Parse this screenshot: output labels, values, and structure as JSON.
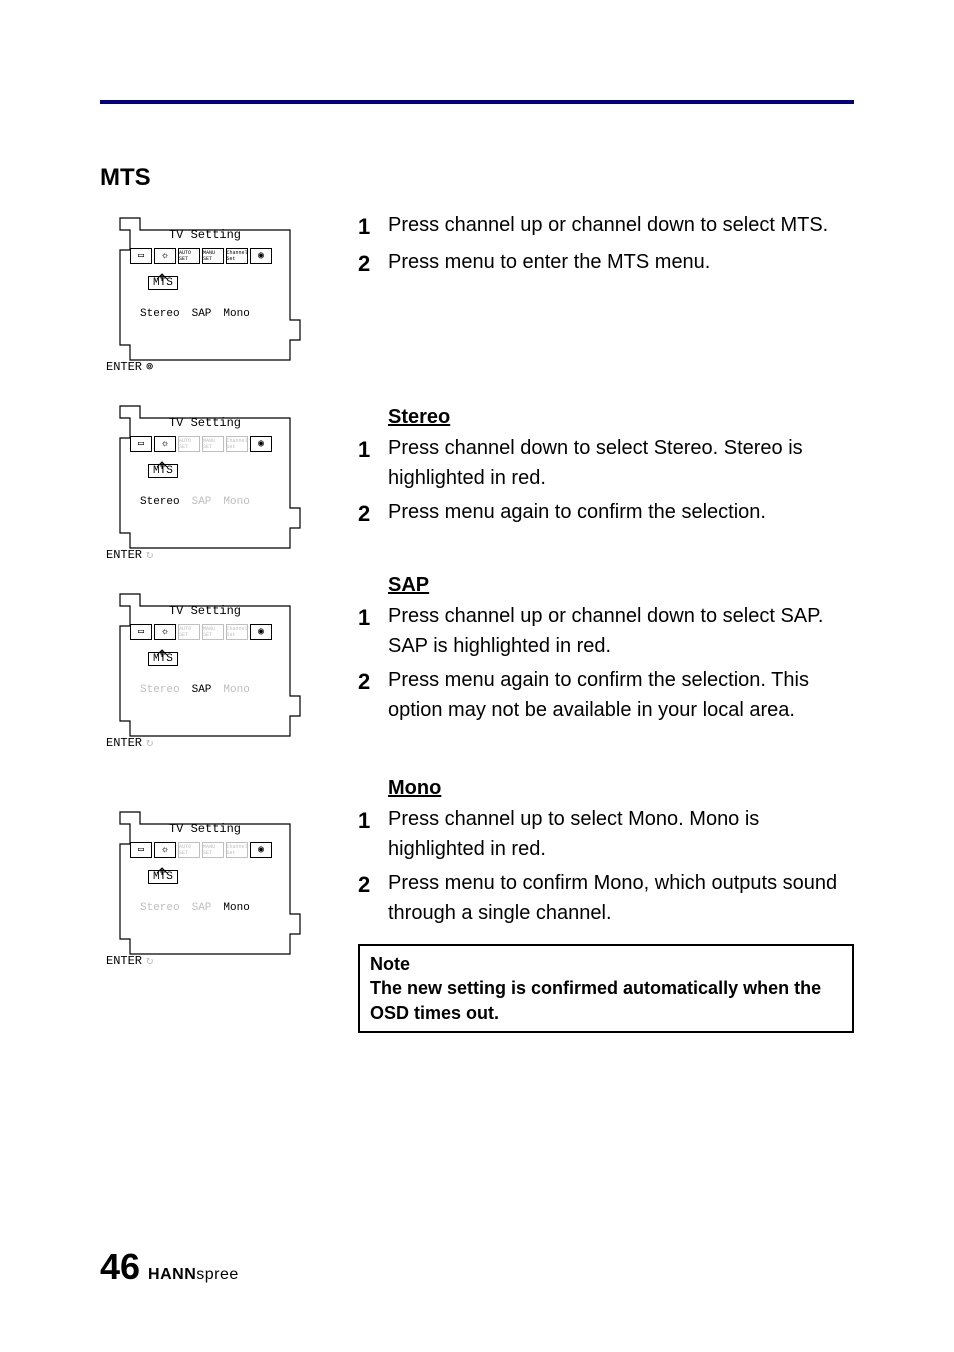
{
  "divider_color": "#000080",
  "section_title": "MTS",
  "osd": {
    "title": "TV  Setting",
    "mts_label": "MTS",
    "enter_label": "ENTER",
    "icons_normal": [
      {
        "dim": false,
        "glyph": "▭"
      },
      {
        "dim": false,
        "glyph": "☼"
      },
      {
        "dim": false,
        "glyph": "AUTO SET"
      },
      {
        "dim": false,
        "glyph": "MANU SET"
      },
      {
        "dim": false,
        "glyph": "Channel Set"
      },
      {
        "dim": false,
        "glyph": "◉"
      }
    ],
    "icons_dim": [
      {
        "dim": false,
        "glyph": "▭"
      },
      {
        "dim": false,
        "glyph": "☼"
      },
      {
        "dim": true,
        "glyph": "AUTO SET"
      },
      {
        "dim": true,
        "glyph": "MANU SET"
      },
      {
        "dim": true,
        "glyph": "Channel Set"
      },
      {
        "dim": false,
        "glyph": "◉"
      }
    ],
    "options": [
      "Stereo",
      "SAP",
      "Mono"
    ],
    "screens": [
      {
        "highlight": [
          0,
          1,
          2
        ],
        "dim_icons": false,
        "enter_sym": "⊚"
      },
      {
        "highlight": [
          0
        ],
        "dim_icons": true,
        "enter_sym": "↻"
      },
      {
        "highlight": [
          1
        ],
        "dim_icons": true,
        "enter_sym": "↻"
      },
      {
        "highlight": [
          2
        ],
        "dim_icons": true,
        "enter_sym": "↻"
      }
    ]
  },
  "blocks": [
    {
      "heading": null,
      "steps": [
        {
          "n": "1",
          "t": "Press channel up or channel down to select MTS."
        },
        {
          "n": "2",
          "t": "Press menu to enter the MTS menu."
        }
      ]
    },
    {
      "heading": "Stereo",
      "steps": [
        {
          "n": "1",
          "t": "Press channel down to select Stereo. Stereo is highlighted in red."
        },
        {
          "n": "2",
          "t": "Press menu again to confirm the selection."
        }
      ]
    },
    {
      "heading": "SAP",
      "steps": [
        {
          "n": "1",
          "t": "Press channel up or channel down to select SAP. SAP is highlighted in red."
        },
        {
          "n": "2",
          "t": "Press menu again to confirm the selection. This option may not be available in your local area."
        }
      ]
    },
    {
      "heading": "Mono",
      "steps": [
        {
          "n": "1",
          "t": "Press channel up to select Mono. Mono is highlighted in red."
        },
        {
          "n": "2",
          "t": "Press menu to confirm Mono, which outputs sound through a single channel."
        }
      ]
    }
  ],
  "note": {
    "title": "Note",
    "body": "The new setting is confirmed automatically when the OSD times out."
  },
  "footer": {
    "page": "46",
    "brand_bold": "HANN",
    "brand_light": "spree"
  }
}
